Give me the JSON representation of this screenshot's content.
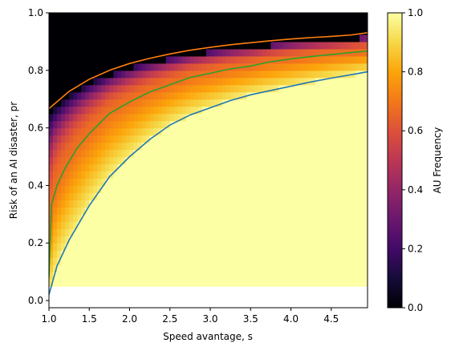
{
  "chart_data": {
    "type": "heatmap",
    "xlabel": "Speed avantage, s",
    "ylabel": "Risk of an AI disaster, pr",
    "colorbar_label": "AU Frequency",
    "colormap": "inferno",
    "xlim": [
      1.0,
      4.95
    ],
    "ylim": [
      -0.025,
      1.0
    ],
    "x_ticks": [
      1.0,
      1.5,
      2.0,
      2.5,
      3.0,
      3.5,
      4.0,
      4.5
    ],
    "x_tick_labels": [
      "1.0",
      "1.5",
      "2.0",
      "2.5",
      "3.0",
      "3.5",
      "4.0",
      "4.5"
    ],
    "y_ticks": [
      0.0,
      0.2,
      0.4,
      0.6,
      0.8,
      1.0
    ],
    "y_tick_labels": [
      "0.0",
      "0.2",
      "0.4",
      "0.6",
      "0.8",
      "1.0"
    ],
    "colorbar_ticks": [
      0.0,
      0.2,
      0.4,
      0.6,
      0.8,
      1.0
    ],
    "colorbar_tick_labels": [
      "0.0",
      "0.2",
      "0.4",
      "0.6",
      "0.8",
      "1.0"
    ],
    "heatmap": {
      "x_start": 1.0,
      "x_step": 0.05,
      "x_count": 79,
      "y_start": 0.05,
      "y_step": 0.025,
      "y_count": 38
    },
    "series": [
      {
        "color": "#ff7f0e",
        "x": [
          1.0,
          1.25,
          1.5,
          1.75,
          2.0,
          2.25,
          2.5,
          2.75,
          3.0,
          3.25,
          3.5,
          3.75,
          4.0,
          4.25,
          4.5,
          4.75,
          4.95
        ],
        "y": [
          0.667,
          0.727,
          0.769,
          0.8,
          0.824,
          0.842,
          0.857,
          0.87,
          0.88,
          0.889,
          0.896,
          0.903,
          0.909,
          0.914,
          0.918,
          0.923,
          0.931
        ]
      },
      {
        "color": "#2ca02c",
        "x": [
          1.0,
          1.03,
          1.1,
          1.2,
          1.35,
          1.5,
          1.75,
          2.0,
          2.25,
          2.5,
          2.75,
          3.0,
          3.25,
          3.5,
          3.75,
          4.0,
          4.25,
          4.5,
          4.75,
          4.95
        ],
        "y": [
          0.08,
          0.33,
          0.4,
          0.46,
          0.53,
          0.58,
          0.65,
          0.69,
          0.725,
          0.75,
          0.775,
          0.79,
          0.805,
          0.815,
          0.83,
          0.84,
          0.848,
          0.855,
          0.862,
          0.867
        ]
      },
      {
        "color": "#1f77b4",
        "x": [
          1.0,
          1.1,
          1.25,
          1.5,
          1.75,
          2.0,
          2.25,
          2.5,
          2.75,
          3.0,
          3.25,
          3.5,
          3.75,
          4.0,
          4.25,
          4.5,
          4.75,
          4.95
        ],
        "y": [
          0.02,
          0.12,
          0.21,
          0.33,
          0.43,
          0.5,
          0.56,
          0.61,
          0.645,
          0.67,
          0.695,
          0.715,
          0.73,
          0.745,
          0.76,
          0.773,
          0.785,
          0.795
        ]
      }
    ]
  }
}
